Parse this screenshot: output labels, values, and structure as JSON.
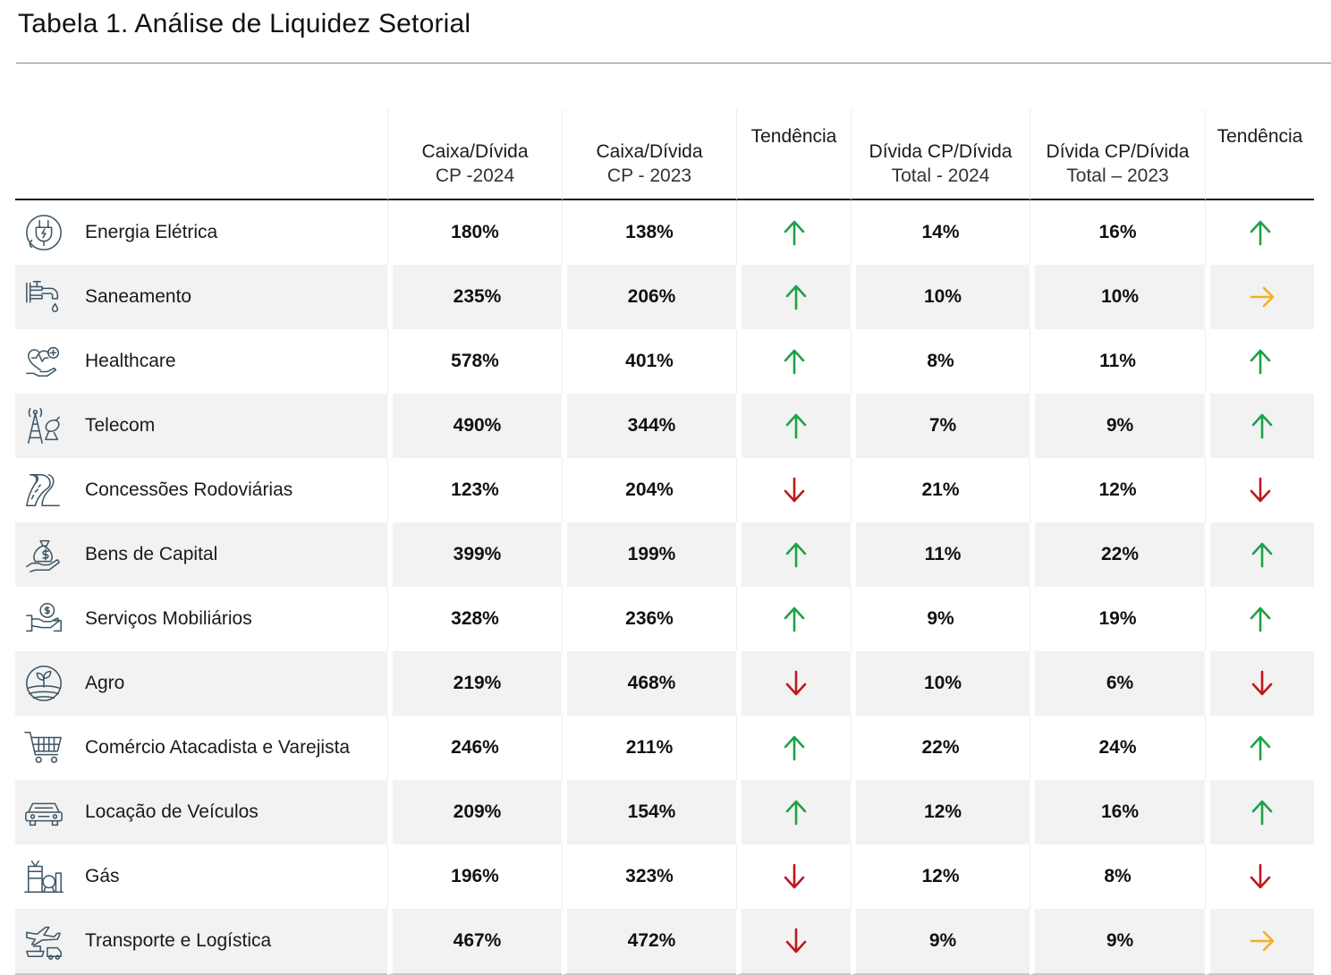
{
  "title": "Tabela 1. Análise de Liquidez Setorial",
  "columns": {
    "caixa_2024": {
      "line1": "Caixa/Dívida",
      "line2": "CP -2024"
    },
    "caixa_2023": {
      "line1": "Caixa/Dívida",
      "line2": "CP - 2023"
    },
    "tendencia_1": "Tendência",
    "divida_2024": {
      "line1": "Dívida CP/Dívida",
      "line2": "Total - 2024"
    },
    "divida_2023": {
      "line1": "Dívida CP/Dívida",
      "line2": "Total – 2023"
    },
    "tendencia_2": "Tendência"
  },
  "colors": {
    "up": "#1fa04a",
    "down": "#c0161c",
    "flat": "#f2b01e",
    "icon": "#3d5566"
  },
  "rows": [
    {
      "sector": "Energia Elétrica",
      "icon": "plug-icon",
      "caixa_2024": "180%",
      "caixa_2023": "138%",
      "trend_1": "up",
      "divida_2024": "14%",
      "divida_2023": "16%",
      "trend_2": "up"
    },
    {
      "sector": "Saneamento",
      "icon": "faucet-icon",
      "caixa_2024": "235%",
      "caixa_2023": "206%",
      "trend_1": "up",
      "divida_2024": "10%",
      "divida_2023": "10%",
      "trend_2": "flat"
    },
    {
      "sector": "Healthcare",
      "icon": "health-hand-icon",
      "caixa_2024": "578%",
      "caixa_2023": "401%",
      "trend_1": "up",
      "divida_2024": "8%",
      "divida_2023": "11%",
      "trend_2": "up"
    },
    {
      "sector": "Telecom",
      "icon": "antenna-icon",
      "caixa_2024": "490%",
      "caixa_2023": "344%",
      "trend_1": "up",
      "divida_2024": "7%",
      "divida_2023": "9%",
      "trend_2": "up"
    },
    {
      "sector": "Concessões Rodoviárias",
      "icon": "road-icon",
      "caixa_2024": "123%",
      "caixa_2023": "204%",
      "trend_1": "down",
      "divida_2024": "21%",
      "divida_2023": "12%",
      "trend_2": "down"
    },
    {
      "sector": "Bens de Capital",
      "icon": "money-bag-hand-icon",
      "caixa_2024": "399%",
      "caixa_2023": "199%",
      "trend_1": "up",
      "divida_2024": "11%",
      "divida_2023": "22%",
      "trend_2": "up"
    },
    {
      "sector": "Serviços Mobiliários",
      "icon": "coin-hand-icon",
      "caixa_2024": "328%",
      "caixa_2023": "236%",
      "trend_1": "up",
      "divida_2024": "9%",
      "divida_2023": "19%",
      "trend_2": "up"
    },
    {
      "sector": "Agro",
      "icon": "sprout-field-icon",
      "caixa_2024": "219%",
      "caixa_2023": "468%",
      "trend_1": "down",
      "divida_2024": "10%",
      "divida_2023": "6%",
      "trend_2": "down"
    },
    {
      "sector": "Comércio Atacadista e Varejista",
      "icon": "shopping-cart-icon",
      "caixa_2024": "246%",
      "caixa_2023": "211%",
      "trend_1": "up",
      "divida_2024": "22%",
      "divida_2023": "24%",
      "trend_2": "up"
    },
    {
      "sector": "Locação de Veículos",
      "icon": "car-icon",
      "caixa_2024": "209%",
      "caixa_2023": "154%",
      "trend_1": "up",
      "divida_2024": "12%",
      "divida_2023": "16%",
      "trend_2": "up"
    },
    {
      "sector": "Gás",
      "icon": "gas-plant-icon",
      "caixa_2024": "196%",
      "caixa_2023": "323%",
      "trend_1": "down",
      "divida_2024": "12%",
      "divida_2023": "8%",
      "trend_2": "down"
    },
    {
      "sector": "Transporte e Logística",
      "icon": "logistics-icon",
      "caixa_2024": "467%",
      "caixa_2023": "472%",
      "trend_1": "down",
      "divida_2024": "9%",
      "divida_2023": "9%",
      "trend_2": "flat"
    }
  ]
}
